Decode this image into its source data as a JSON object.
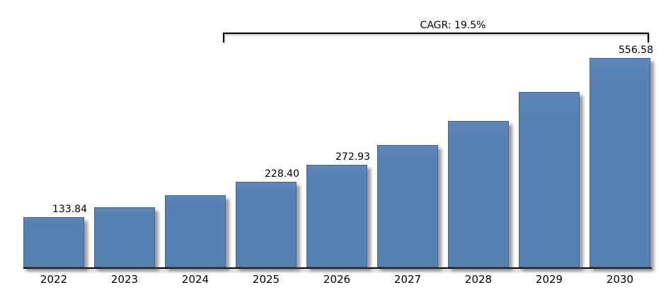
{
  "colors": {
    "background": "#FFFFFF",
    "bar_fill": "#5580B2",
    "bar_border": "#40689B",
    "axis": "#000000",
    "text": "#000000"
  },
  "chart_data": {
    "type": "bar",
    "title": "",
    "xlabel": "",
    "ylabel": "",
    "categories": [
      "2022",
      "2023",
      "2024",
      "2025",
      "2026",
      "2027",
      "2028",
      "2029",
      "2030"
    ],
    "values": [
      133.84,
      159.94,
      191.13,
      228.4,
      272.93,
      326.15,
      389.75,
      465.75,
      556.58
    ],
    "data_labels": [
      "133.84",
      null,
      null,
      "228.40",
      "272.93",
      null,
      null,
      null,
      "556.58"
    ],
    "ylim": [
      0,
      580
    ],
    "grid": false,
    "legend": "none",
    "annotation": {
      "text": "CAGR: 19.5%",
      "from_category": "2025",
      "to_category": "2030"
    }
  }
}
